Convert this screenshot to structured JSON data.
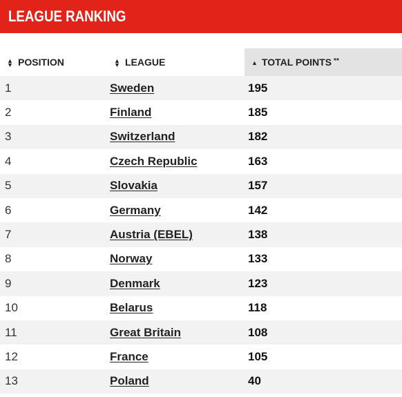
{
  "header": {
    "title": "League Ranking"
  },
  "table": {
    "columns": [
      {
        "label": "POSITION"
      },
      {
        "label": "LEAGUE"
      },
      {
        "label": "TOTAL POINTS",
        "note": "**"
      }
    ],
    "rows": [
      {
        "position": "1",
        "league": "Sweden",
        "points": "195"
      },
      {
        "position": "2",
        "league": "Finland",
        "points": "185"
      },
      {
        "position": "3",
        "league": "Switzerland",
        "points": "182"
      },
      {
        "position": "4",
        "league": "Czech Republic",
        "points": "163"
      },
      {
        "position": "5",
        "league": "Slovakia",
        "points": "157"
      },
      {
        "position": "6",
        "league": "Germany",
        "points": "142"
      },
      {
        "position": "7",
        "league": "Austria (EBEL)",
        "points": "138"
      },
      {
        "position": "8",
        "league": "Norway",
        "points": "133"
      },
      {
        "position": "9",
        "league": "Denmark",
        "points": "123"
      },
      {
        "position": "10",
        "league": "Belarus",
        "points": "118"
      },
      {
        "position": "11",
        "league": "Great Britain",
        "points": "108"
      },
      {
        "position": "12",
        "league": "France",
        "points": "105"
      },
      {
        "position": "13",
        "league": "Poland",
        "points": "40"
      }
    ]
  },
  "colors": {
    "accent": "#e2231a",
    "sorted_header": "#e3e3e3",
    "row_alt": "#f2f2f2"
  },
  "icons": {
    "sort": "sort-updown-icon",
    "sorted": "sort-asc-icon"
  }
}
